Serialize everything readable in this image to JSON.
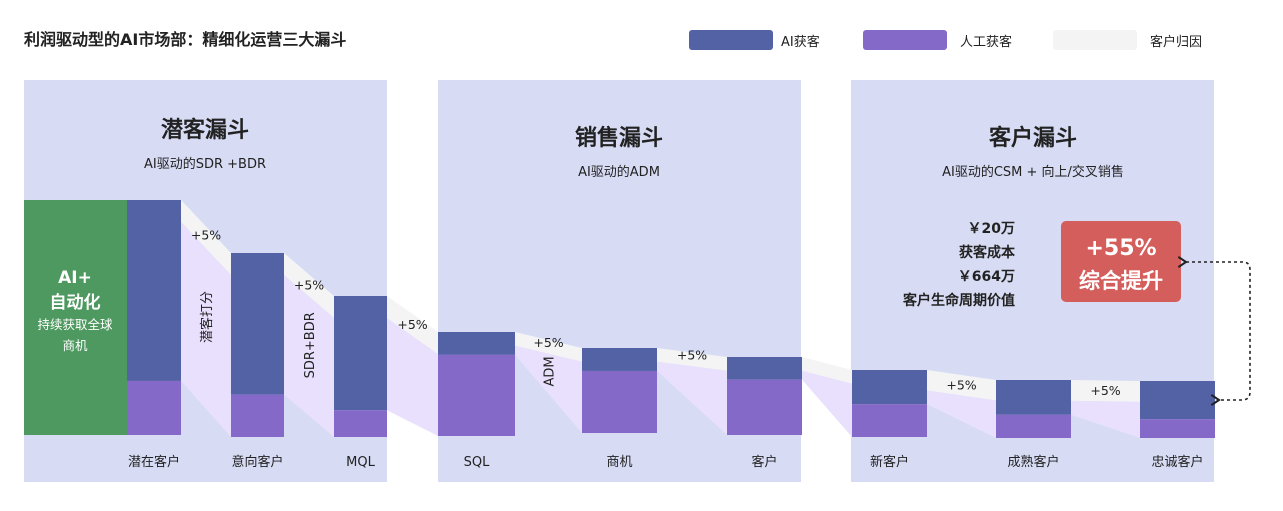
{
  "title": "利润驱动型的AI市场部：精细化运营三大漏斗",
  "legend": [
    {
      "label": "AI获客",
      "color": "#5262a5"
    },
    {
      "label": "人工获客",
      "color": "#8569c8"
    },
    {
      "label": "客户归因",
      "color": "#f4f4f4"
    }
  ],
  "panels": [
    {
      "title": "潜客漏斗",
      "subtitle": "AI驱动的SDR +BDR"
    },
    {
      "title": "销售漏斗",
      "subtitle": "AI驱动的ADM"
    },
    {
      "title": "客户漏斗",
      "subtitle": "AI驱动的CSM + 向上/交叉销售"
    }
  ],
  "ai_block": {
    "line1": "AI+",
    "line2": "自动化",
    "line3": "持续获取全球",
    "line4": "商机",
    "color": "#4e9960"
  },
  "stages": [
    {
      "label": "潜在客户",
      "ai_share": 0.77
    },
    {
      "label": "意向客户",
      "ai_share": 0.77
    },
    {
      "label": "MQL",
      "ai_share": 0.81
    },
    {
      "label": "SQL",
      "ai_share": 0.22
    },
    {
      "label": "商机",
      "ai_share": 0.27
    },
    {
      "label": "客户",
      "ai_share": 0.29
    },
    {
      "label": "新客户",
      "ai_share": 0.51
    },
    {
      "label": "成熟客户",
      "ai_share": 0.6
    },
    {
      "label": "忠诚客户",
      "ai_share": 0.67
    }
  ],
  "connectors": [
    {
      "pct": "+5%",
      "label": "潜客打分"
    },
    {
      "pct": "+5%",
      "label": "SDR+BDR"
    },
    {
      "pct": "+5%",
      "label": ""
    },
    {
      "pct": "+5%",
      "label": "ADM"
    },
    {
      "pct": "+5%",
      "label": ""
    },
    {
      "pct": "",
      "label": ""
    },
    {
      "pct": "+5%",
      "label": ""
    },
    {
      "pct": "+5%",
      "label": ""
    }
  ],
  "metrics": {
    "cac_value": "￥20万",
    "cac_label": "获客成本",
    "ltv_value": "￥664万",
    "ltv_label": "客户生命周期价值"
  },
  "highlight": {
    "value": "+55%",
    "label": "综合提升",
    "color": "#d45e5b"
  }
}
